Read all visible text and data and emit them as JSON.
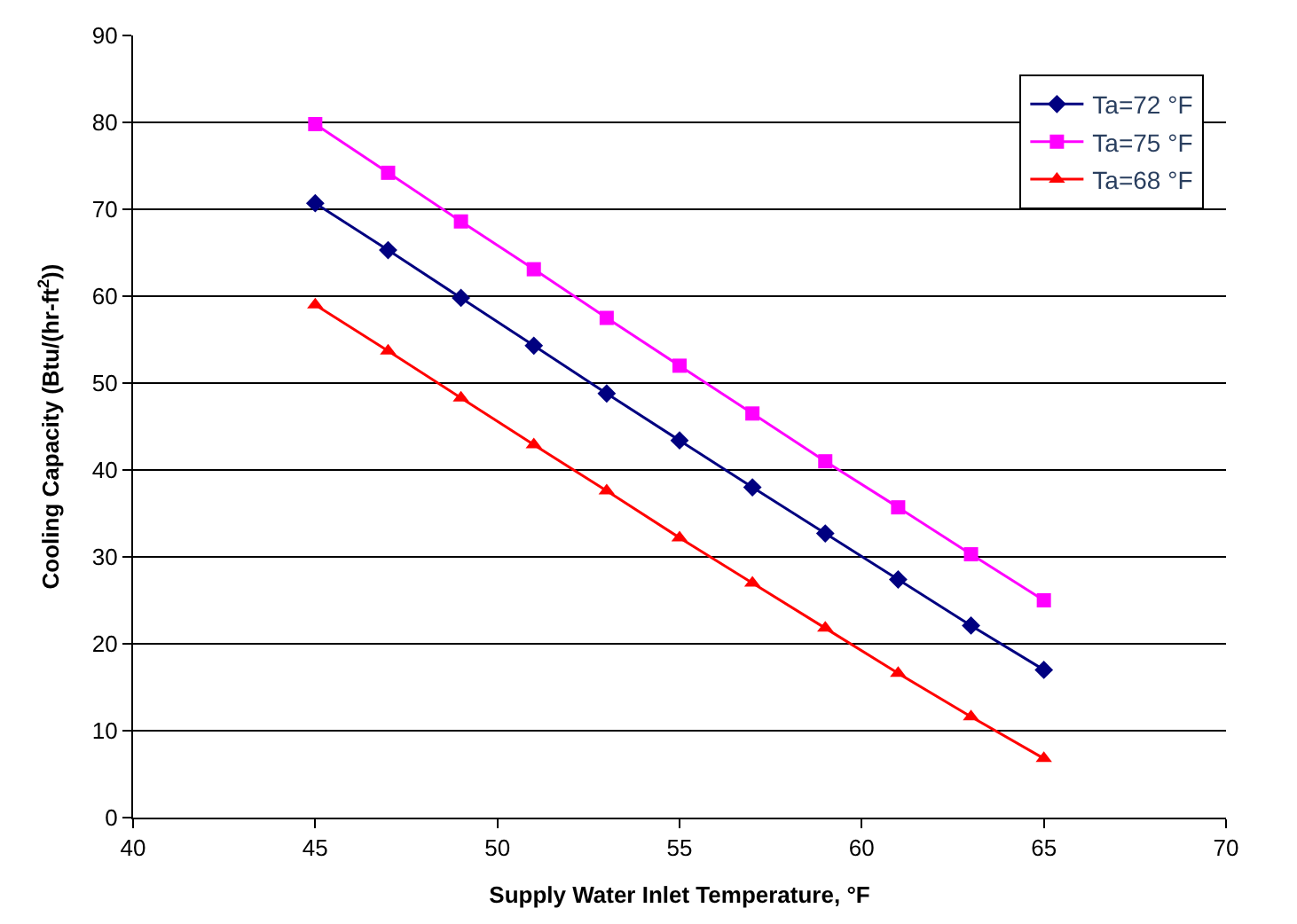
{
  "chart_data": {
    "type": "line",
    "xlabel": "Supply Water Inlet Temperature, °F",
    "ylabel": "Cooling Capacity (Btu/(hr-ft$^{2}$))",
    "x": [
      45,
      47,
      49,
      51,
      53,
      55,
      57,
      59,
      61,
      63,
      65
    ],
    "series": [
      {
        "name": "Ta=72 °F",
        "color": "#000080",
        "marker": "diamond",
        "values": [
          70.7,
          65.3,
          59.8,
          54.3,
          48.8,
          43.4,
          38.0,
          32.7,
          27.4,
          22.1,
          17.0
        ]
      },
      {
        "name": "Ta=75 °F",
        "color": "#ff00ff",
        "marker": "square",
        "values": [
          79.8,
          74.2,
          68.6,
          63.1,
          57.5,
          52.0,
          46.5,
          41.0,
          35.7,
          30.3,
          25.0
        ]
      },
      {
        "name": "Ta=68 °F",
        "color": "#ff0000",
        "marker": "triangle",
        "values": [
          59.0,
          53.7,
          48.3,
          42.9,
          37.6,
          32.2,
          27.0,
          21.8,
          16.6,
          11.6,
          6.8
        ]
      }
    ],
    "xlim": [
      40,
      70
    ],
    "xticks": [
      40,
      45,
      50,
      55,
      60,
      65,
      70
    ],
    "ylim": [
      0,
      90
    ],
    "yticks": [
      0,
      10,
      20,
      30,
      40,
      50,
      60,
      70,
      80,
      90
    ],
    "grid": "y",
    "legend": "top right",
    "line_style": "solid"
  }
}
